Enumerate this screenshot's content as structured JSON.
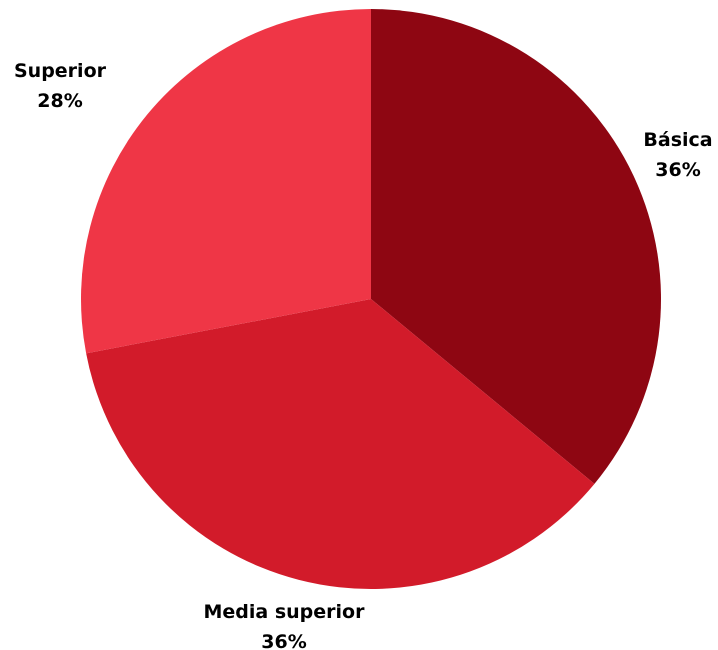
{
  "chart_data": {
    "type": "pie",
    "slices": [
      {
        "label": "Básica",
        "value": 36,
        "value_label": "36%",
        "color": "#8e0612"
      },
      {
        "label": "Media superior",
        "value": 36,
        "value_label": "36%",
        "color": "#d21b2a"
      },
      {
        "label": "Superior",
        "value": 28,
        "value_label": "28%",
        "color": "#ef3646"
      }
    ],
    "start_angle": "12 o'clock",
    "direction": "clockwise",
    "legend": "none",
    "labels": "outside"
  }
}
